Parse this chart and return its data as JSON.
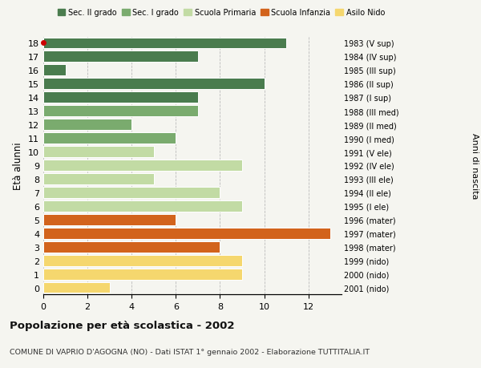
{
  "ages": [
    18,
    17,
    16,
    15,
    14,
    13,
    12,
    11,
    10,
    9,
    8,
    7,
    6,
    5,
    4,
    3,
    2,
    1,
    0
  ],
  "years": [
    "1983 (V sup)",
    "1984 (IV sup)",
    "1985 (III sup)",
    "1986 (II sup)",
    "1987 (I sup)",
    "1988 (III med)",
    "1989 (II med)",
    "1990 (I med)",
    "1991 (V ele)",
    "1992 (IV ele)",
    "1993 (III ele)",
    "1994 (II ele)",
    "1995 (I ele)",
    "1996 (mater)",
    "1997 (mater)",
    "1998 (mater)",
    "1999 (nido)",
    "2000 (nido)",
    "2001 (nido)"
  ],
  "values": [
    11,
    7,
    1,
    10,
    7,
    7,
    4,
    6,
    5,
    9,
    5,
    8,
    9,
    6,
    13,
    8,
    9,
    9,
    3
  ],
  "categories": [
    "Sec. II grado",
    "Sec. II grado",
    "Sec. II grado",
    "Sec. II grado",
    "Sec. II grado",
    "Sec. I grado",
    "Sec. I grado",
    "Sec. I grado",
    "Scuola Primaria",
    "Scuola Primaria",
    "Scuola Primaria",
    "Scuola Primaria",
    "Scuola Primaria",
    "Scuola Infanzia",
    "Scuola Infanzia",
    "Scuola Infanzia",
    "Asilo Nido",
    "Asilo Nido",
    "Asilo Nido"
  ],
  "colors": {
    "Sec. II grado": "#4a7c4e",
    "Sec. I grado": "#7aab6e",
    "Scuola Primaria": "#c2dba4",
    "Scuola Infanzia": "#d2631c",
    "Asilo Nido": "#f5d76e"
  },
  "title": "Popolazione per età scolastica - 2002",
  "subtitle": "COMUNE DI VAPRIO D'AGOGNA (NO) - Dati ISTAT 1° gennaio 2002 - Elaborazione TUTTITALIA.IT",
  "ylabel": "Età alunni",
  "right_label": "Anni di nascita",
  "xlim_max": 13.5,
  "xticks": [
    0,
    2,
    4,
    6,
    8,
    10,
    12
  ],
  "background_color": "#f5f5f0",
  "dot_color": "#cc0000",
  "dot_age": 18,
  "bar_height": 0.82,
  "legend_order": [
    "Sec. II grado",
    "Sec. I grado",
    "Scuola Primaria",
    "Scuola Infanzia",
    "Asilo Nido"
  ]
}
